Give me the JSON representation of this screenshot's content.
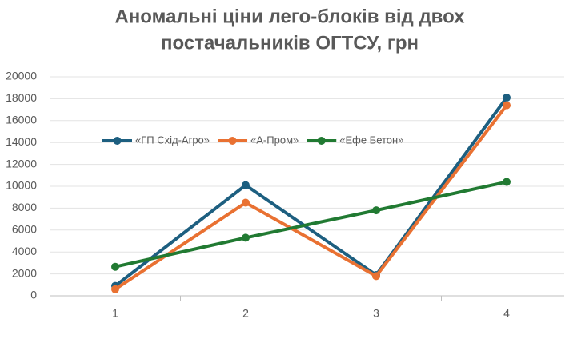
{
  "chart_data": {
    "type": "line",
    "title": [
      "Аномальні ціни лего-блоків від двох",
      "постачальників ОГТСУ, грн"
    ],
    "categories": [
      "1",
      "2",
      "3",
      "4"
    ],
    "series": [
      {
        "name": "«ГП Схід-Агро»",
        "color": "#1d5f80",
        "values": [
          900,
          10100,
          1900,
          18100
        ]
      },
      {
        "name": "«А-Пром»",
        "color": "#e97132",
        "values": [
          600,
          8500,
          1800,
          17400
        ]
      },
      {
        "name": "«Ефе Бетон»",
        "color": "#217a32",
        "values": [
          2650,
          5300,
          7800,
          10400
        ]
      }
    ],
    "ylim": [
      0,
      20000
    ],
    "yticks": [
      0,
      2000,
      4000,
      6000,
      8000,
      10000,
      12000,
      14000,
      16000,
      18000,
      20000
    ],
    "grid": true,
    "legend": "top"
  }
}
